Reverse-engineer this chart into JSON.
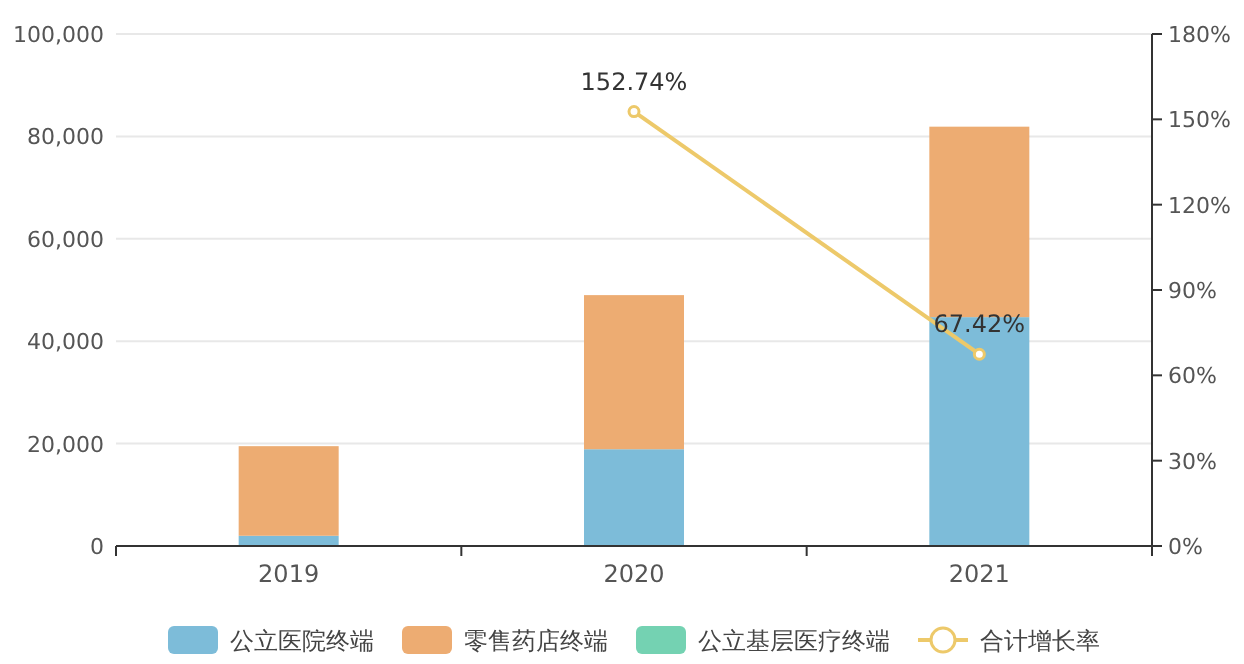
{
  "chart_data": {
    "type": "bar",
    "stacked": true,
    "categories": [
      "2019",
      "2020",
      "2021"
    ],
    "series": [
      {
        "name": "公立医院终端",
        "color": "#7dbcd9",
        "values": [
          2000,
          18900,
          44700
        ]
      },
      {
        "name": "零售药店终端",
        "color": "#edac72",
        "values": [
          17500,
          30100,
          37200
        ]
      },
      {
        "name": "公立基层医疗终端",
        "color": "#74d2b2",
        "values": [
          null,
          null,
          null
        ]
      },
      {
        "name": "合计增长率",
        "type": "line",
        "axis": "y2",
        "marker": "circle",
        "color": "#edc96a",
        "values": [
          null,
          152.74,
          67.42
        ],
        "value_labels": [
          null,
          "152.74%",
          "67.42%"
        ]
      }
    ],
    "ylim": [
      0,
      100000
    ],
    "yticks": [
      {
        "value": 0,
        "label": "0"
      },
      {
        "value": 20000,
        "label": "20,000"
      },
      {
        "value": 40000,
        "label": "40,000"
      },
      {
        "value": 60000,
        "label": "60,000"
      },
      {
        "value": 80000,
        "label": "80,000"
      },
      {
        "value": 100000,
        "label": "100,000"
      }
    ],
    "y2lim": [
      0,
      180
    ],
    "y2ticks": [
      {
        "value": 0,
        "label": "0%"
      },
      {
        "value": 30,
        "label": "30%"
      },
      {
        "value": 60,
        "label": "60%"
      },
      {
        "value": 90,
        "label": "90%"
      },
      {
        "value": 120,
        "label": "120%"
      },
      {
        "value": 150,
        "label": "150%"
      },
      {
        "value": 180,
        "label": "180%"
      }
    ],
    "grid": "y",
    "legend": "bottom"
  }
}
